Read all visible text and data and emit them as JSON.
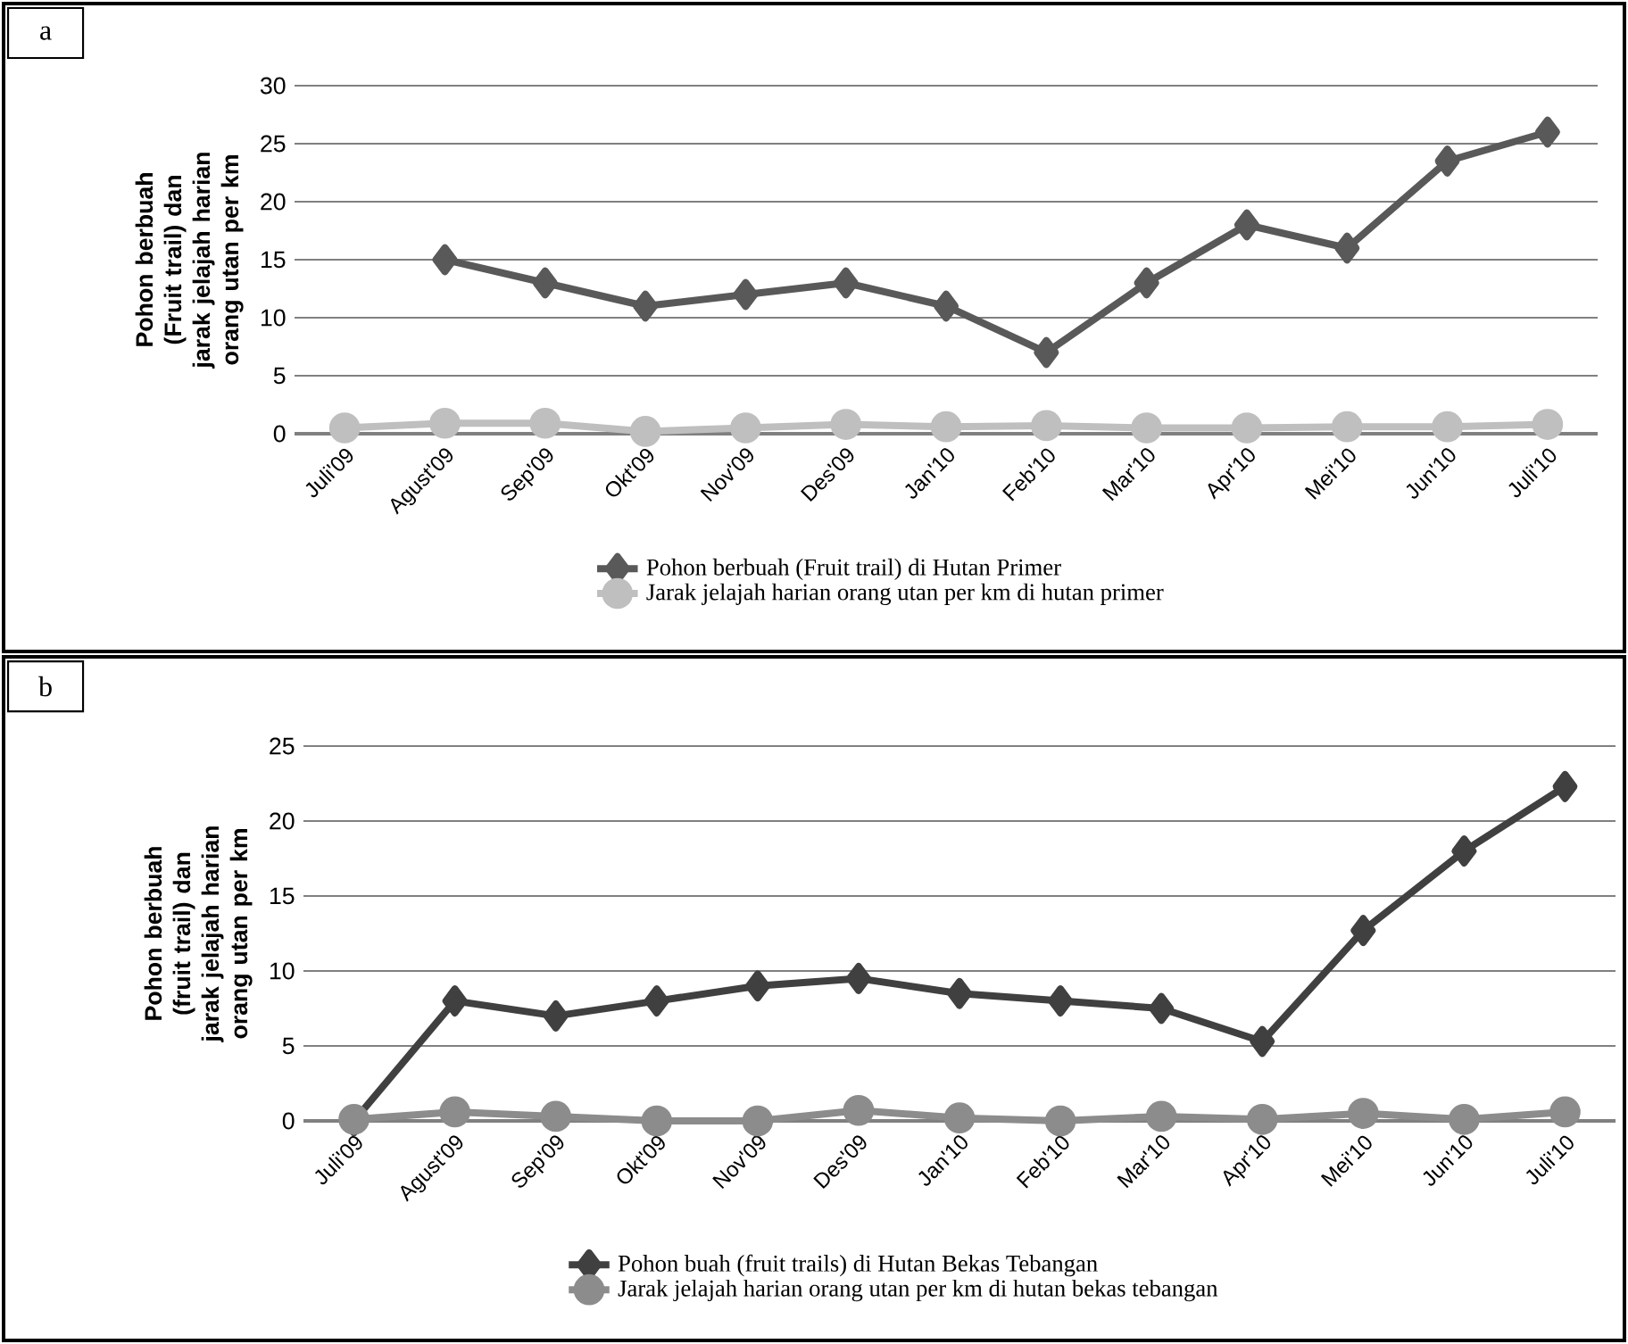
{
  "chart_data": [
    {
      "type": "line",
      "ylabel": "Pohon berbuah (Fruit trail) dan jarak jelajah harian orang utan per km",
      "annotations": [
        "a"
      ],
      "categories": [
        "Juli'09",
        "Agust'09",
        "Sep'09",
        "Okt'09",
        "Nov'09",
        "Des'09",
        "Jan'10",
        "Feb'10",
        "Mar'10",
        "Apr'10",
        "Mei'10",
        "Jun'10",
        "Juli'10"
      ],
      "ylim": [
        0,
        30
      ],
      "yticks": [
        0,
        5,
        10,
        15,
        20,
        25,
        30
      ],
      "grid": "y",
      "legend": "bottom",
      "series": [
        {
          "name": "Pohon berbuah (Fruit trail) di Hutan Primer",
          "color": "#595959",
          "marker": "diamond",
          "values": [
            null,
            15,
            13,
            11,
            12,
            13,
            11,
            7,
            13,
            18,
            16,
            23.5,
            26
          ]
        },
        {
          "name": "Jarak jelajah harian orang utan per km di hutan primer",
          "color": "#bfbfbf",
          "marker": "circle",
          "values": [
            0.5,
            0.9,
            0.9,
            0.2,
            0.5,
            0.8,
            0.6,
            0.7,
            0.5,
            0.5,
            0.6,
            0.6,
            0.8
          ]
        }
      ]
    },
    {
      "type": "line",
      "ylabel": "Pohon berbuah (fruit trail) dan jarak jelajah harian orang utan per km",
      "annotations": [
        "b"
      ],
      "categories": [
        "Juli'09",
        "Agust'09",
        "Sep'09",
        "Okt'09",
        "Nov'09",
        "Des'09",
        "Jan'10",
        "Feb'10",
        "Mar'10",
        "Apr'10",
        "Mei'10",
        "Jun'10",
        "Juli'10"
      ],
      "ylim": [
        0,
        25
      ],
      "yticks": [
        0,
        5,
        10,
        15,
        20,
        25
      ],
      "grid": "y",
      "legend": "bottom",
      "series": [
        {
          "name": "Pohon buah (fruit trails) di Hutan Bekas Tebangan",
          "color": "#404040",
          "marker": "diamond",
          "values": [
            0,
            8,
            7,
            8,
            9,
            9.5,
            8.5,
            8,
            7.5,
            5.3,
            12.7,
            18,
            22.3
          ]
        },
        {
          "name": "Jarak jelajah harian orang utan per km di hutan bekas tebangan",
          "color": "#8c8c8c",
          "marker": "circle",
          "values": [
            0.1,
            0.6,
            0.3,
            0,
            0,
            0.7,
            0.2,
            0,
            0.3,
            0.1,
            0.5,
            0.1,
            0.6
          ]
        }
      ]
    }
  ]
}
